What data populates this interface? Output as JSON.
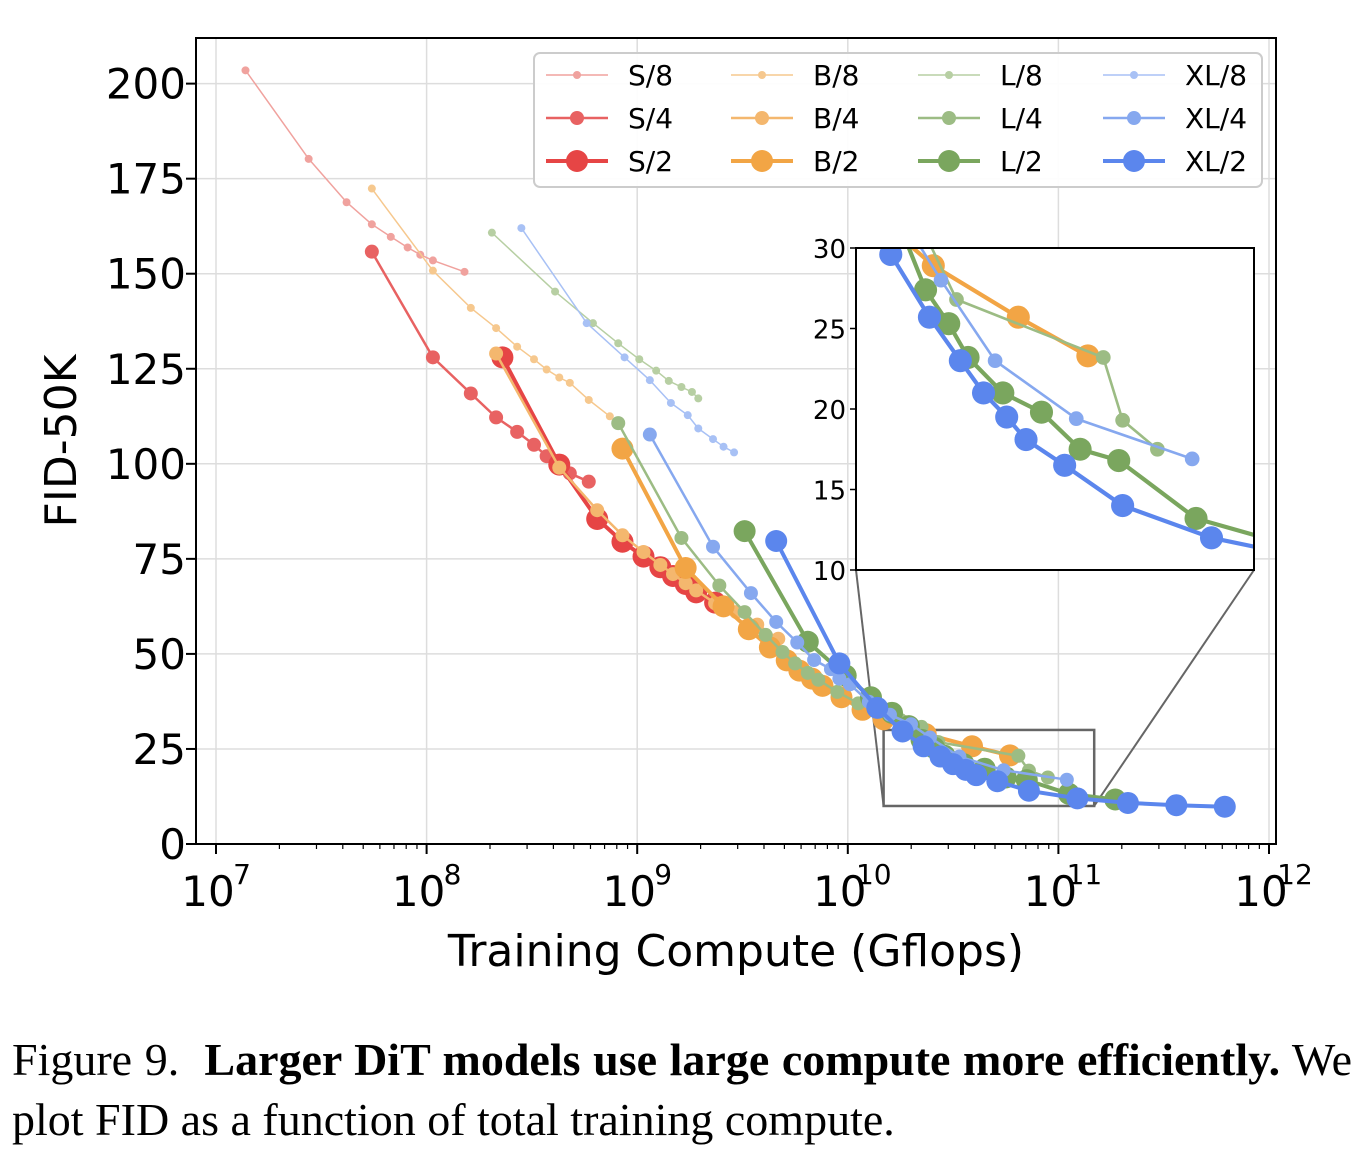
{
  "chart_data": {
    "type": "line",
    "xscale": "log",
    "xlabel": "Training Compute (Gflops)",
    "ylabel": "FID-50K",
    "xlim": [
      7,
      12.1
    ],
    "ylim": [
      0,
      212
    ],
    "xticks": [
      7,
      8,
      9,
      10,
      11,
      12
    ],
    "xtick_labels": [
      "10",
      "10",
      "10",
      "10",
      "10",
      "10"
    ],
    "xtick_exponents": [
      "7",
      "8",
      "9",
      "10",
      "11",
      "12"
    ],
    "yticks": [
      0,
      25,
      50,
      75,
      100,
      125,
      150,
      175,
      200
    ],
    "ytick_labels": [
      "0",
      "25",
      "50",
      "75",
      "100",
      "125",
      "150",
      "175",
      "200"
    ],
    "grid": true,
    "legend_position": "top-right",
    "series": [
      {
        "name": "S/8",
        "color": "#f0a29e",
        "size": "small",
        "points": [
          [
            7.14,
            203.5
          ],
          [
            7.44,
            180.2
          ],
          [
            7.62,
            168.8
          ],
          [
            7.74,
            163.0
          ],
          [
            7.83,
            159.7
          ],
          [
            7.91,
            156.9
          ],
          [
            7.97,
            155.0
          ],
          [
            8.03,
            153.5
          ],
          [
            8.18,
            150.5
          ]
        ]
      },
      {
        "name": "S/4",
        "color": "#e86262",
        "size": "medium",
        "points": [
          [
            7.74,
            155.8
          ],
          [
            8.03,
            128.0
          ],
          [
            8.21,
            118.5
          ],
          [
            8.33,
            112.2
          ],
          [
            8.43,
            108.4
          ],
          [
            8.51,
            105.0
          ],
          [
            8.57,
            102.0
          ],
          [
            8.63,
            99.5
          ],
          [
            8.68,
            97.5
          ],
          [
            8.77,
            95.3
          ]
        ]
      },
      {
        "name": "S/2",
        "color": "#e64545",
        "size": "large",
        "points": [
          [
            8.36,
            128.0
          ],
          [
            8.63,
            99.8
          ],
          [
            8.81,
            85.5
          ],
          [
            8.93,
            79.5
          ],
          [
            9.03,
            75.6
          ],
          [
            9.11,
            72.8
          ],
          [
            9.17,
            70.5
          ],
          [
            9.23,
            68.4
          ],
          [
            9.28,
            66.2
          ],
          [
            9.37,
            63.5
          ]
        ]
      },
      {
        "name": "B/8",
        "color": "#f6c88e",
        "size": "small",
        "points": [
          [
            7.74,
            172.4
          ],
          [
            8.03,
            150.8
          ],
          [
            8.21,
            141.0
          ],
          [
            8.33,
            135.7
          ],
          [
            8.43,
            130.8
          ],
          [
            8.51,
            127.5
          ],
          [
            8.57,
            124.8
          ],
          [
            8.63,
            122.7
          ],
          [
            8.68,
            121.3
          ],
          [
            8.77,
            116.8
          ],
          [
            8.87,
            112.5
          ]
        ]
      },
      {
        "name": "B/4",
        "color": "#f4b76e",
        "size": "medium",
        "points": [
          [
            8.33,
            129.0
          ],
          [
            8.63,
            99.0
          ],
          [
            8.81,
            87.8
          ],
          [
            8.93,
            81.2
          ],
          [
            9.03,
            76.8
          ],
          [
            9.11,
            73.4
          ],
          [
            9.17,
            71.0
          ],
          [
            9.23,
            68.6
          ],
          [
            9.28,
            66.7
          ],
          [
            9.37,
            63.3
          ],
          [
            9.47,
            61.0
          ],
          [
            9.57,
            57.7
          ],
          [
            9.67,
            54.0
          ]
        ]
      },
      {
        "name": "B/2",
        "color": "#f2a545",
        "size": "large",
        "points": [
          [
            8.93,
            104.0
          ],
          [
            9.23,
            72.6
          ],
          [
            9.41,
            62.5
          ],
          [
            9.53,
            56.5
          ],
          [
            9.63,
            51.7
          ],
          [
            9.71,
            48.3
          ],
          [
            9.77,
            45.6
          ],
          [
            9.83,
            43.5
          ],
          [
            9.88,
            41.6
          ],
          [
            9.97,
            38.6
          ],
          [
            10.07,
            35.3
          ],
          [
            10.17,
            32.8
          ],
          [
            10.27,
            31.0
          ],
          [
            10.37,
            28.9
          ],
          [
            10.59,
            25.7
          ],
          [
            10.77,
            23.3
          ]
        ]
      },
      {
        "name": "L/8",
        "color": "#b7cfa3",
        "size": "small",
        "points": [
          [
            8.31,
            160.8
          ],
          [
            8.61,
            145.3
          ],
          [
            8.79,
            137.0
          ],
          [
            8.91,
            131.7
          ],
          [
            9.01,
            127.5
          ],
          [
            9.09,
            124.5
          ],
          [
            9.15,
            121.8
          ],
          [
            9.21,
            120.2
          ],
          [
            9.26,
            118.9
          ],
          [
            9.29,
            117.2
          ]
        ]
      },
      {
        "name": "L/4",
        "color": "#9cbc84",
        "size": "medium",
        "points": [
          [
            8.91,
            110.7
          ],
          [
            9.21,
            80.5
          ],
          [
            9.39,
            68.0
          ],
          [
            9.51,
            61.0
          ],
          [
            9.61,
            55.0
          ],
          [
            9.69,
            50.5
          ],
          [
            9.75,
            47.5
          ],
          [
            9.81,
            45.0
          ],
          [
            9.86,
            43.2
          ],
          [
            9.95,
            40.0
          ],
          [
            10.05,
            37.0
          ],
          [
            10.15,
            34.8
          ],
          [
            10.25,
            32.6
          ],
          [
            10.35,
            30.8
          ],
          [
            10.43,
            26.8
          ],
          [
            10.81,
            23.2
          ],
          [
            10.86,
            19.3
          ],
          [
            10.95,
            17.5
          ]
        ]
      },
      {
        "name": "L/2",
        "color": "#7aa65e",
        "size": "large",
        "points": [
          [
            9.51,
            82.3
          ],
          [
            9.81,
            53.2
          ],
          [
            9.99,
            44.3
          ],
          [
            10.11,
            38.6
          ],
          [
            10.21,
            34.5
          ],
          [
            10.29,
            31.0
          ],
          [
            10.35,
            27.4
          ],
          [
            10.41,
            25.3
          ],
          [
            10.46,
            23.2
          ],
          [
            10.55,
            21.0
          ],
          [
            10.65,
            19.8
          ],
          [
            10.75,
            17.5
          ],
          [
            10.85,
            16.8
          ],
          [
            11.05,
            13.2
          ],
          [
            11.27,
            11.7
          ]
        ]
      },
      {
        "name": "XL/8",
        "color": "#a8c1f5",
        "size": "small",
        "points": [
          [
            8.45,
            162.0
          ],
          [
            8.76,
            137.0
          ],
          [
            8.94,
            128.0
          ],
          [
            9.06,
            122.0
          ],
          [
            9.16,
            116.0
          ],
          [
            9.24,
            112.8
          ],
          [
            9.29,
            109.3
          ],
          [
            9.36,
            106.5
          ],
          [
            9.41,
            104.5
          ],
          [
            9.46,
            103.0
          ]
        ]
      },
      {
        "name": "XL/4",
        "color": "#86a8ef",
        "size": "medium",
        "points": [
          [
            9.06,
            107.7
          ],
          [
            9.36,
            78.2
          ],
          [
            9.54,
            66.0
          ],
          [
            9.66,
            58.4
          ],
          [
            9.76,
            53.0
          ],
          [
            9.84,
            48.4
          ],
          [
            9.92,
            46.0
          ],
          [
            9.96,
            43.5
          ],
          [
            10.01,
            42.0
          ],
          [
            10.1,
            37.4
          ],
          [
            10.2,
            34.0
          ],
          [
            10.3,
            31.5
          ],
          [
            10.39,
            28.0
          ],
          [
            10.53,
            23.0
          ],
          [
            10.74,
            19.4
          ],
          [
            11.04,
            16.9
          ]
        ]
      },
      {
        "name": "XL/2",
        "color": "#5b86ed",
        "size": "large",
        "points": [
          [
            9.66,
            79.7
          ],
          [
            9.96,
            47.5
          ],
          [
            10.14,
            35.8
          ],
          [
            10.26,
            29.6
          ],
          [
            10.36,
            25.7
          ],
          [
            10.44,
            23.0
          ],
          [
            10.5,
            21.0
          ],
          [
            10.56,
            19.5
          ],
          [
            10.61,
            18.1
          ],
          [
            10.71,
            16.5
          ],
          [
            10.86,
            14.0
          ],
          [
            11.09,
            12.0
          ],
          [
            11.33,
            10.8
          ],
          [
            11.56,
            10.2
          ],
          [
            11.79,
            9.8
          ]
        ]
      }
    ],
    "inset": {
      "xlim": [
        10.17,
        11.2
      ],
      "ylim": [
        10,
        30
      ],
      "yticks": [
        10,
        15,
        20,
        25,
        30
      ],
      "ytick_labels": [
        "10",
        "15",
        "20",
        "25",
        "30"
      ],
      "zoom_box": {
        "x": [
          10.17,
          11.17
        ],
        "y": [
          10,
          30
        ]
      }
    }
  },
  "caption": {
    "figure_label": "Figure 9.",
    "bold_text": "Larger DiT models use large compute more efficiently.",
    "rest_text": "We plot FID as a function of total training compute."
  }
}
